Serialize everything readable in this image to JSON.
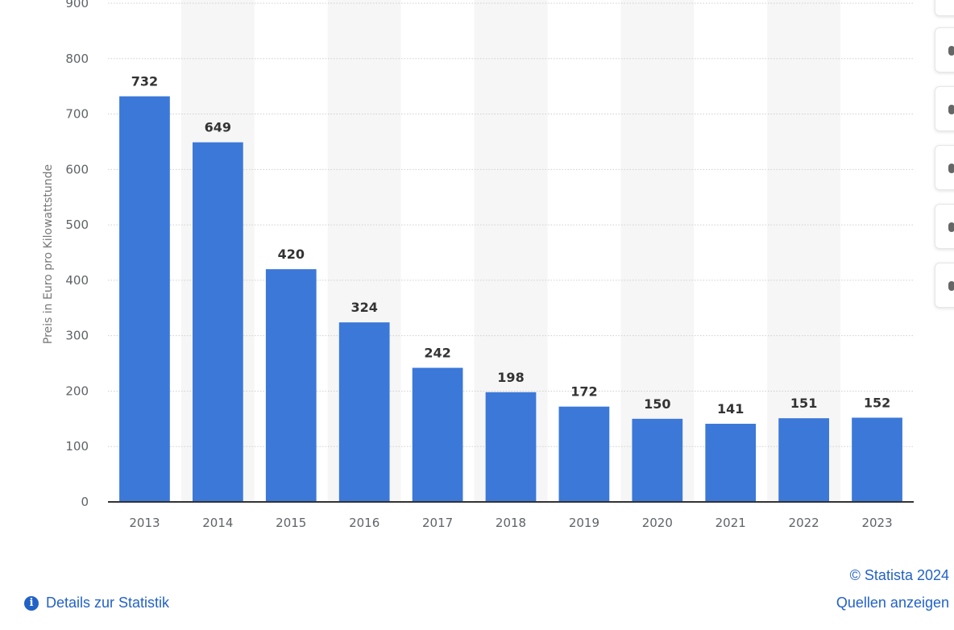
{
  "chart_data": {
    "type": "bar",
    "ylabel": "Preis in Euro pro Kilowattstunde",
    "xlabel": "",
    "categories": [
      "2013",
      "2014",
      "2015",
      "2016",
      "2017",
      "2018",
      "2019",
      "2020",
      "2021",
      "2022",
      "2023"
    ],
    "values": [
      732,
      649,
      420,
      324,
      242,
      198,
      172,
      150,
      141,
      151,
      152
    ],
    "ylim": [
      0,
      900
    ],
    "yticks": [
      0,
      100,
      200,
      300,
      400,
      500,
      600,
      700,
      800,
      900
    ],
    "grid": true,
    "bar_color": "#3b78d8",
    "band_color": "#f6f6f6"
  },
  "footer": {
    "copyright": "© Statista 2024",
    "sources_link": "Quellen anzeigen",
    "details_link": "Details zur Statistik",
    "link_color": "#2262c6"
  },
  "toolbar": {
    "buttons": [
      "toolbar-button",
      "toolbar-button",
      "toolbar-button",
      "toolbar-button",
      "toolbar-button",
      "toolbar-button"
    ]
  }
}
